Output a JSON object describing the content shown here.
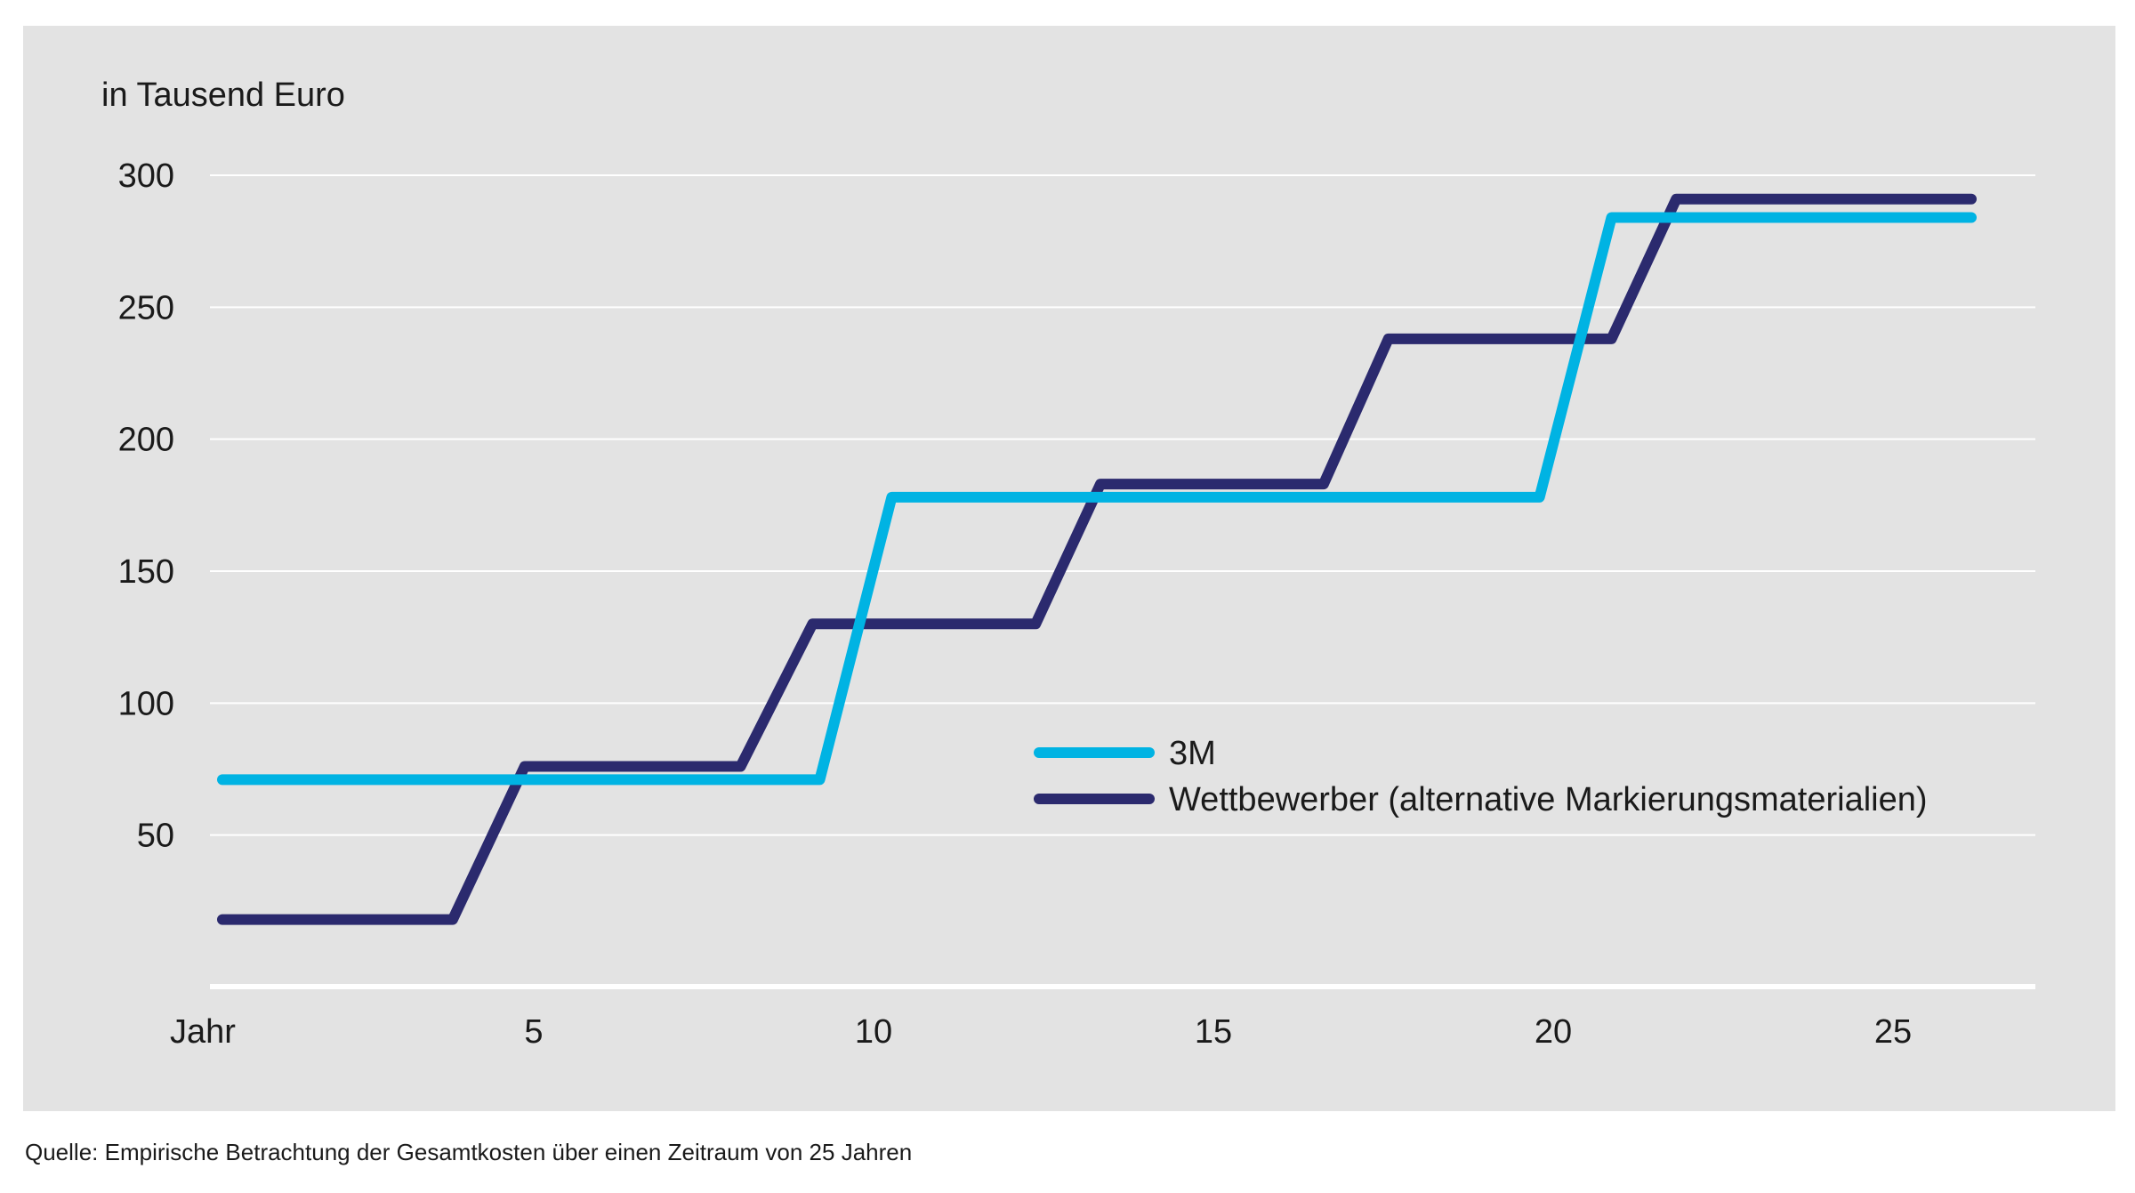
{
  "chart_data": {
    "type": "line",
    "step": true,
    "ylabel": "in Tausend Euro",
    "xlabel": "",
    "x_tick_labels": [
      {
        "x": 0,
        "label": "Jahr"
      },
      {
        "x": 5,
        "label": "5"
      },
      {
        "x": 10,
        "label": "10"
      },
      {
        "x": 15,
        "label": "15"
      },
      {
        "x": 20,
        "label": "20"
      },
      {
        "x": 25,
        "label": "25"
      }
    ],
    "y_ticks": [
      50,
      100,
      150,
      200,
      250,
      300
    ],
    "xlim": [
      0,
      25
    ],
    "ylim": [
      0,
      300
    ],
    "grid": true,
    "legend_position": "center-right",
    "series": [
      {
        "name": "3M",
        "color": "#00b3e3",
        "points": [
          [
            0,
            71
          ],
          [
            8.3,
            71
          ],
          [
            9.3,
            178
          ],
          [
            18.3,
            178
          ],
          [
            19.3,
            284
          ],
          [
            24.3,
            284
          ]
        ]
      },
      {
        "name": "Wettbewerber (alternative Markierungsmaterialien)",
        "color": "#2b2a6e",
        "points": [
          [
            0,
            18
          ],
          [
            3.2,
            18
          ],
          [
            4.2,
            76
          ],
          [
            7.2,
            76
          ],
          [
            8.2,
            130
          ],
          [
            11.3,
            130
          ],
          [
            12.2,
            183
          ],
          [
            15.3,
            183
          ],
          [
            16.2,
            238
          ],
          [
            19.3,
            238
          ],
          [
            20.2,
            291
          ],
          [
            24.3,
            291
          ]
        ]
      }
    ]
  },
  "colors": {
    "panel_background": "#e3e3e3",
    "gridline": "#ffffff",
    "text": "#1a1a1a"
  },
  "source_note": "Quelle: Empirische Betrachtung der Gesamtkosten über einen Zeitraum von 25 Jahren"
}
